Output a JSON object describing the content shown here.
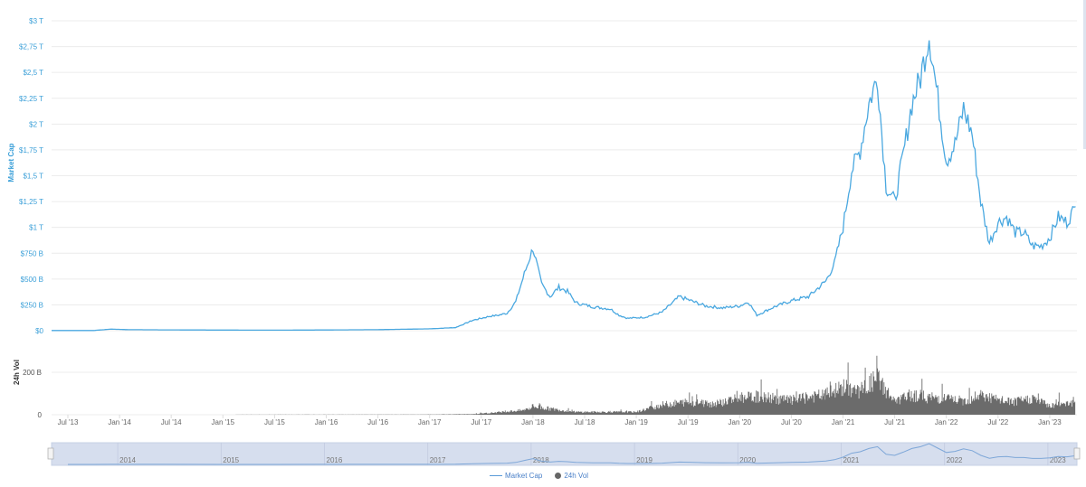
{
  "chart_data": {
    "type": "line",
    "title": "",
    "colors": {
      "market_cap_line": "#4aa8e0",
      "volume_bars": "#6b6b6b",
      "navigator_fill": "#d6deee",
      "navigator_line": "#7ea7d8",
      "axis_text_blue": "#3a9fd8"
    },
    "main_axis": {
      "ylabel": "Market Cap",
      "y_ticks": [
        "$0",
        "$250 B",
        "$500 B",
        "$750 B",
        "$1 T",
        "$1,25 T",
        "$1,5 T",
        "$1,75 T",
        "$2 T",
        "$2,25 T",
        "$2,5 T",
        "$2,75 T",
        "$3 T"
      ],
      "ylim": [
        0,
        3000
      ],
      "unit": "B USD",
      "grid": true
    },
    "volume_axis": {
      "ylabel": "24h Vol",
      "y_ticks": [
        "0",
        "200 B"
      ],
      "ylim": [
        0,
        200
      ]
    },
    "x_ticks": [
      "Jul '13",
      "Jan '14",
      "Jul '14",
      "Jan '15",
      "Jul '15",
      "Jan '16",
      "Jul '16",
      "Jan '17",
      "Jul '17",
      "Jan '18",
      "Jul '18",
      "Jan '19",
      "Jul '19",
      "Jan '20",
      "Jul '20",
      "Jan '21",
      "Jul '21",
      "Jan '22",
      "Jul '22",
      "Jan '23"
    ],
    "navigator_ticks": [
      "2014",
      "2015",
      "2016",
      "2017",
      "2018",
      "2019",
      "2020",
      "2021",
      "2022",
      "2023"
    ],
    "legend": [
      {
        "name": "Market Cap",
        "marker": "line"
      },
      {
        "name": "24h Vol",
        "marker": "dot"
      }
    ],
    "legend_position": "bottom-center",
    "series": [
      {
        "name": "Market Cap",
        "type": "line",
        "x": [
          "2013-05",
          "2013-07",
          "2013-10",
          "2013-12",
          "2014-02",
          "2014-06",
          "2015-01",
          "2015-07",
          "2016-01",
          "2016-07",
          "2017-01",
          "2017-04",
          "2017-06",
          "2017-08",
          "2017-09",
          "2017-10",
          "2017-11",
          "2017-12",
          "2018-01",
          "2018-02",
          "2018-03",
          "2018-04",
          "2018-05",
          "2018-06",
          "2018-08",
          "2018-10",
          "2018-11",
          "2018-12",
          "2019-02",
          "2019-04",
          "2019-06",
          "2019-07",
          "2019-09",
          "2019-11",
          "2020-01",
          "2020-02",
          "2020-03",
          "2020-05",
          "2020-07",
          "2020-09",
          "2020-11",
          "2020-12",
          "2021-01",
          "2021-02",
          "2021-03",
          "2021-04",
          "2021-05",
          "2021-06",
          "2021-07",
          "2021-08",
          "2021-09",
          "2021-10",
          "2021-11",
          "2021-12",
          "2022-01",
          "2022-02",
          "2022-03",
          "2022-04",
          "2022-05",
          "2022-06",
          "2022-07",
          "2022-08",
          "2022-09",
          "2022-10",
          "2022-11",
          "2022-12",
          "2023-01",
          "2023-02",
          "2023-03",
          "2023-04"
        ],
        "values": [
          1.5,
          1.5,
          2,
          15,
          10,
          8,
          6,
          5,
          7,
          10,
          18,
          30,
          100,
          140,
          150,
          170,
          280,
          550,
          800,
          450,
          330,
          420,
          380,
          270,
          230,
          210,
          150,
          120,
          130,
          180,
          330,
          300,
          240,
          220,
          240,
          280,
          150,
          230,
          290,
          330,
          480,
          650,
          1000,
          1550,
          1750,
          2200,
          2450,
          1400,
          1250,
          1700,
          2200,
          2450,
          2870,
          2250,
          1650,
          1800,
          2150,
          1900,
          1250,
          850,
          1050,
          1100,
          950,
          950,
          820,
          820,
          900,
          1100,
          1050,
          1200
        ]
      },
      {
        "name": "24h Vol",
        "type": "bar",
        "x": [
          "2013-05",
          "2016-12",
          "2017-06",
          "2017-12",
          "2018-01",
          "2018-06",
          "2019-01",
          "2019-04",
          "2019-07",
          "2019-10",
          "2020-01",
          "2020-03",
          "2020-07",
          "2020-11",
          "2021-01",
          "2021-03",
          "2021-05",
          "2021-07",
          "2021-09",
          "2021-11",
          "2022-01",
          "2022-03",
          "2022-05",
          "2022-07",
          "2022-09",
          "2022-11",
          "2023-01",
          "2023-03",
          "2023-04"
        ],
        "values": [
          0,
          1,
          3,
          25,
          45,
          15,
          15,
          55,
          70,
          60,
          90,
          100,
          80,
          110,
          150,
          130,
          200,
          70,
          110,
          95,
          90,
          75,
          110,
          80,
          70,
          90,
          50,
          70,
          60
        ]
      }
    ]
  },
  "legend": {
    "market_cap": "Market Cap",
    "volume": "24h Vol"
  }
}
